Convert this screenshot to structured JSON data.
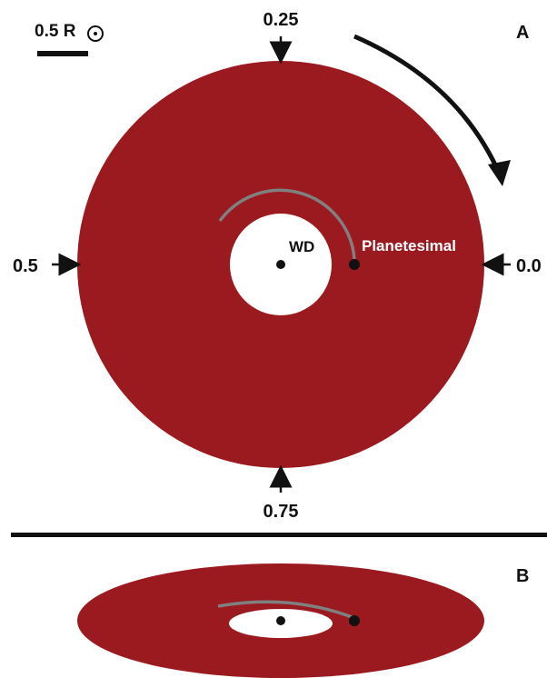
{
  "panel_a": {
    "label": "A",
    "scale_bar": {
      "value": "0.5 R",
      "symbol": "⊙"
    },
    "phases": {
      "top": "0.25",
      "left": "0.5",
      "right": "0.0",
      "bottom": "0.75"
    },
    "wd_label": "WD",
    "planetesimal_label": "Planetesimal"
  },
  "panel_b": {
    "label": "B"
  },
  "colors": {
    "disk": "#9b1a1f",
    "orbit": "#808080",
    "ink": "#111111",
    "hole": "#ffffff",
    "planetesimal_text": "#ffffff"
  }
}
